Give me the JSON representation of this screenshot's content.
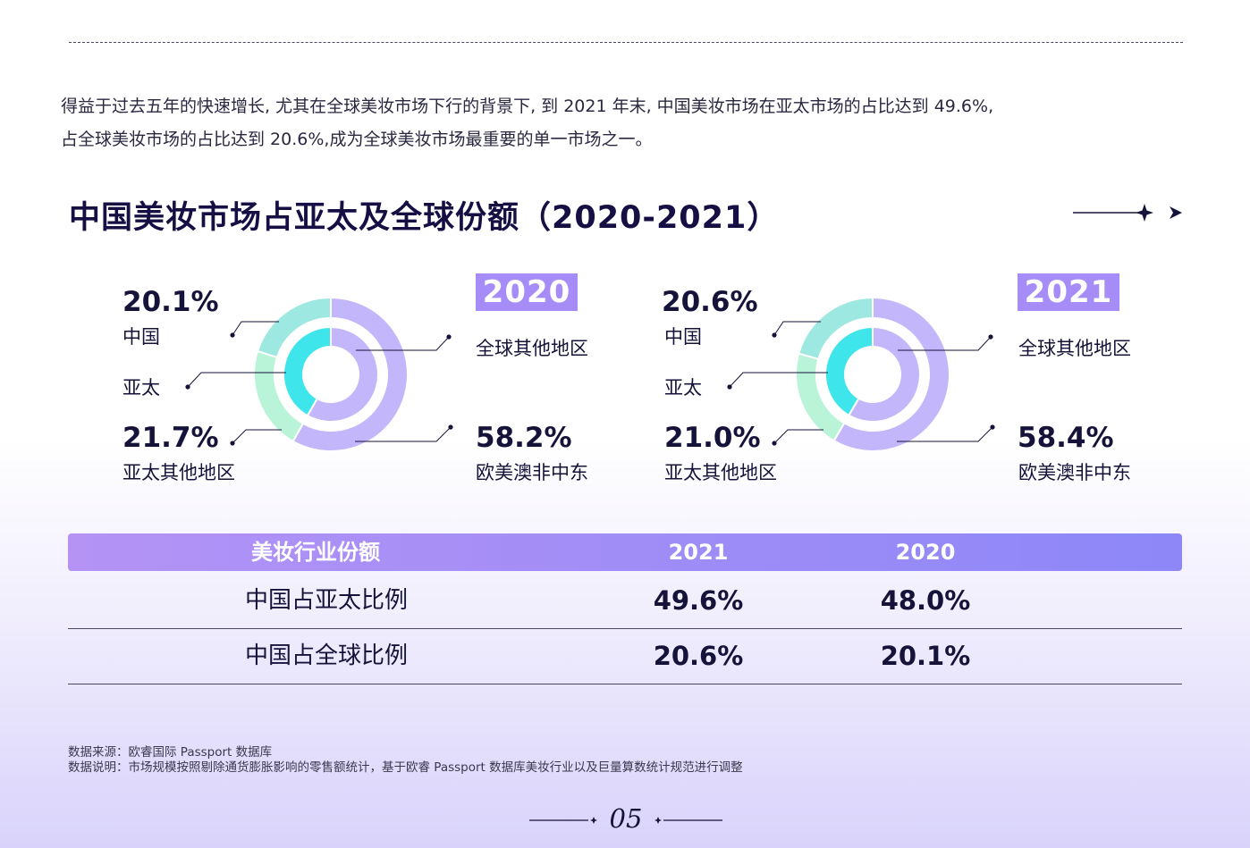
{
  "intro": {
    "line1": "得益于过去五年的快速增长, 尤其在全球美妆市场下行的背景下, 到 2021 年末, 中国美妆市场在亚太市场的占比达到 49.6%,",
    "line2": "占全球美妆市场的占比达到 20.6%,成为全球美妆市场最重要的单一市场之一。"
  },
  "section_title": "中国美妆市场占亚太及全球份额（2020-2021）",
  "chart_data": [
    {
      "type": "donut",
      "year": "2020",
      "outer_ring": [
        {
          "label": "中国",
          "value": 20.1,
          "color": "#9ee8e2"
        },
        {
          "label": "亚太其他地区",
          "value": 21.7,
          "color": "#b9f3d8"
        },
        {
          "label": "欧美澳非中东",
          "value": 58.2,
          "color": "#c3b6fb"
        }
      ],
      "inner_ring": [
        {
          "label": "亚太",
          "value": 41.8,
          "color": "#3ee6ec"
        },
        {
          "label": "全球其他地区",
          "value": 58.2,
          "color": "#c3b6fb"
        }
      ],
      "labels": {
        "china_pct": "20.1%",
        "china": "中国",
        "apac": "亚太",
        "apac_other_pct": "21.7%",
        "apac_other": "亚太其他地区",
        "global_other": "全球其他地区",
        "west_pct": "58.2%",
        "west": "欧美澳非中东"
      }
    },
    {
      "type": "donut",
      "year": "2021",
      "outer_ring": [
        {
          "label": "中国",
          "value": 20.6,
          "color": "#9ee8e2"
        },
        {
          "label": "亚太其他地区",
          "value": 21.0,
          "color": "#b9f3d8"
        },
        {
          "label": "欧美澳非中东",
          "value": 58.4,
          "color": "#c3b6fb"
        }
      ],
      "inner_ring": [
        {
          "label": "亚太",
          "value": 41.6,
          "color": "#3ee6ec"
        },
        {
          "label": "全球其他地区",
          "value": 58.4,
          "color": "#c3b6fb"
        }
      ],
      "labels": {
        "china_pct": "20.6%",
        "china": "中国",
        "apac": "亚太",
        "apac_other_pct": "21.0%",
        "apac_other": "亚太其他地区",
        "global_other": "全球其他地区",
        "west_pct": "58.4%",
        "west": "欧美澳非中东"
      }
    }
  ],
  "table": {
    "headers": [
      "美妆行业份额",
      "2021",
      "2020"
    ],
    "rows": [
      [
        "中国占亚太比例",
        "49.6%",
        "48.0%"
      ],
      [
        "中国占全球比例",
        "20.6%",
        "20.1%"
      ]
    ]
  },
  "notes": {
    "source": "数据来源：欧睿国际 Passport 数据库",
    "explanation": "数据说明：市场规模按照剔除通货膨胀影响的零售额统计，基于欧睿 Passport 数据库美妆行业以及巨量算数统计规范进行调整"
  },
  "page_number": "05"
}
